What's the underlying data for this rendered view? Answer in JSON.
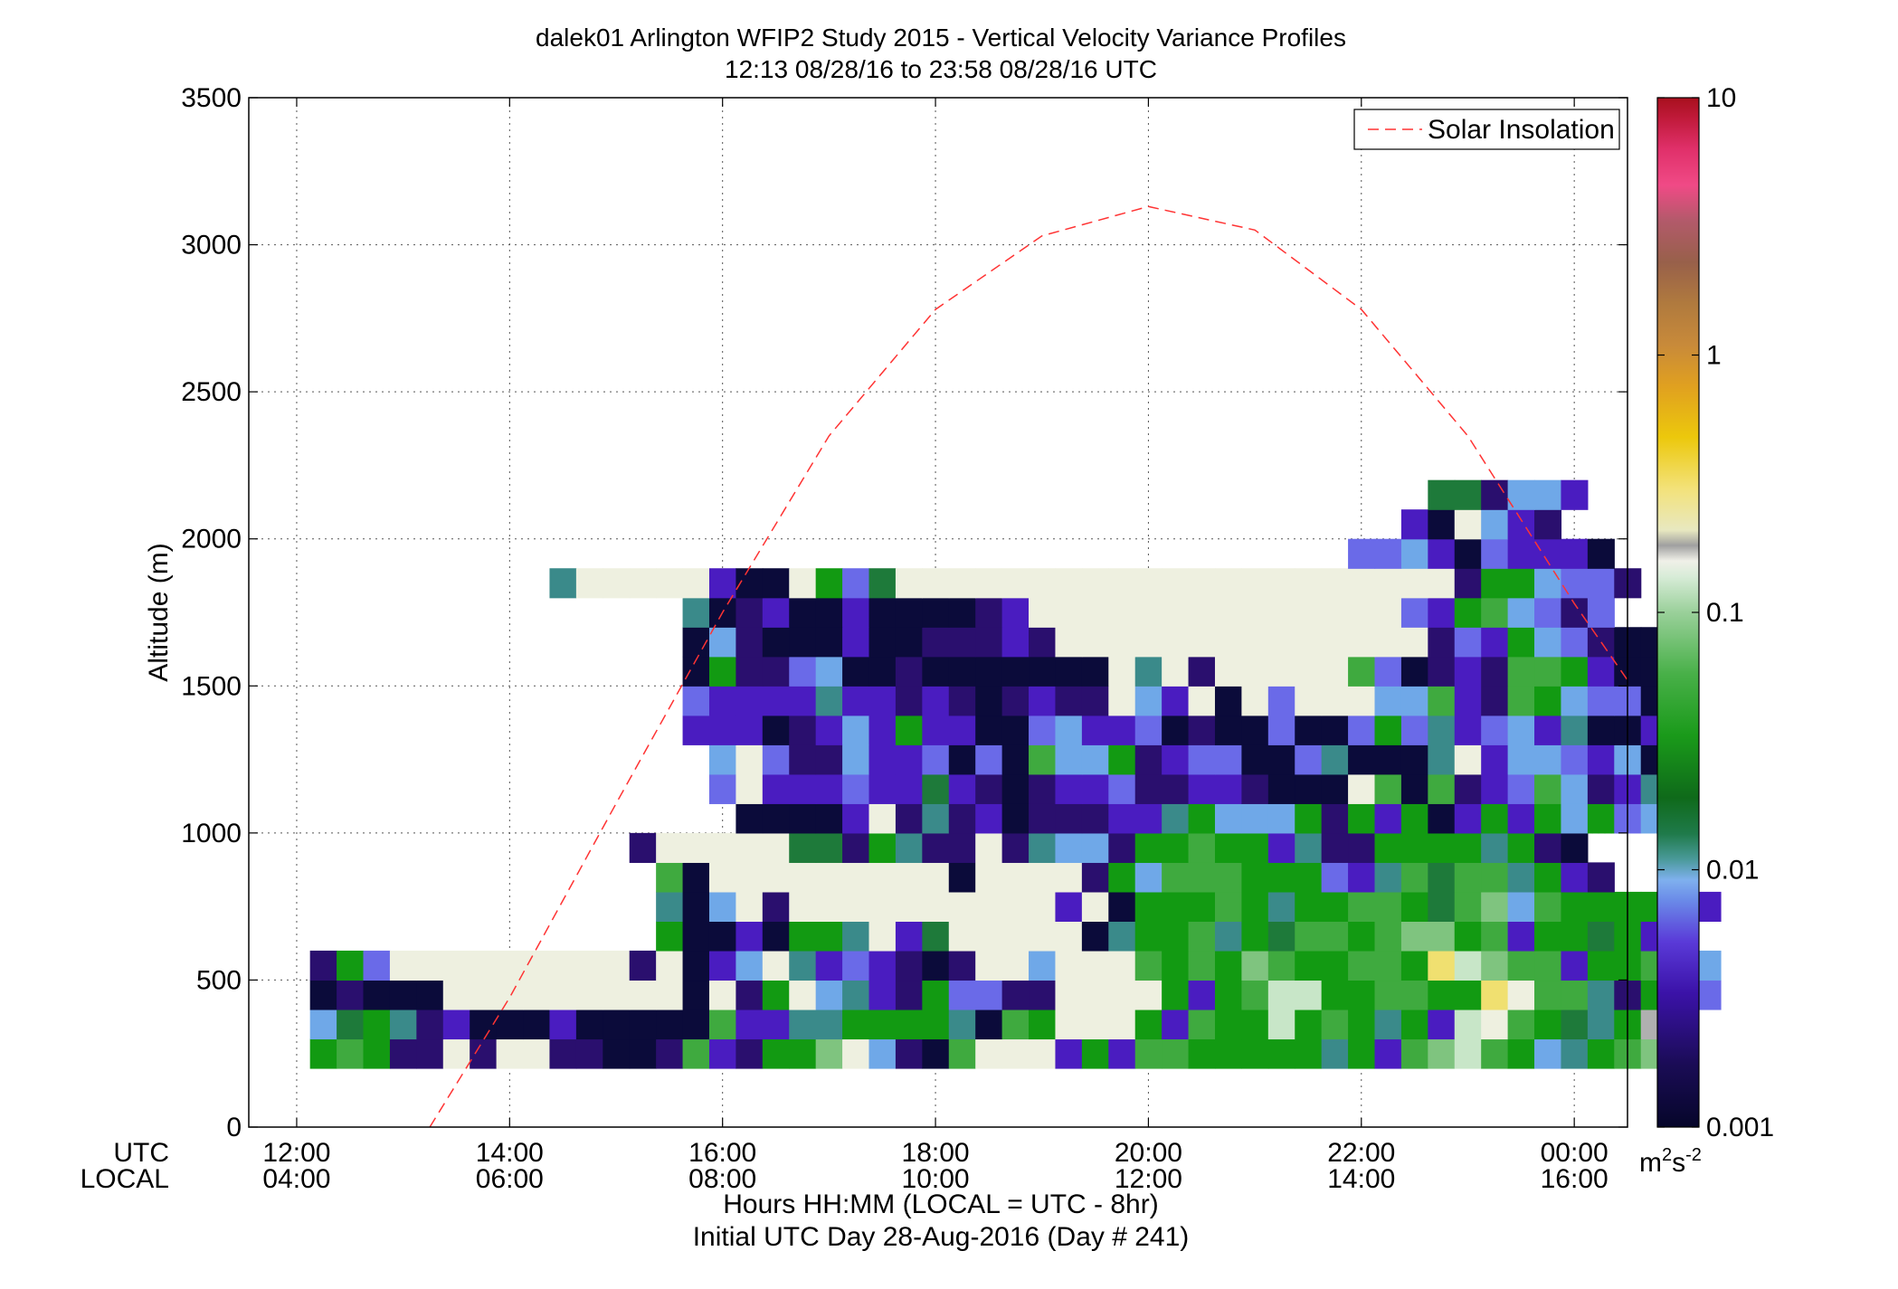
{
  "chart_data": {
    "type": "heatmap",
    "title": "dalek01 Arlington WFIP2 Study 2015 - Vertical Velocity Variance Profiles",
    "subtitle": "12:13 08/28/16 to 23:58 08/28/16  UTC",
    "ylabel": "Altitude (m)",
    "xlabel": "Hours HH:MM  (LOCAL = UTC - 8hr)",
    "xlabel2": "Initial UTC Day 28-Aug-2016 (Day # 241)",
    "xaxis_row_labels": [
      "UTC",
      "LOCAL"
    ],
    "xlim_hours": [
      11.55,
      24.5
    ],
    "ylim": [
      0,
      3500
    ],
    "ytick_values": [
      0,
      500,
      1000,
      1500,
      2000,
      2500,
      3000,
      3500
    ],
    "ytick_labels": [
      "0",
      "500",
      "1000",
      "1500",
      "2000",
      "2500",
      "3000",
      "3500"
    ],
    "xticks": [
      {
        "hour": 12,
        "utc": "12:00",
        "local": "04:00"
      },
      {
        "hour": 14,
        "utc": "14:00",
        "local": "06:00"
      },
      {
        "hour": 16,
        "utc": "16:00",
        "local": "08:00"
      },
      {
        "hour": 18,
        "utc": "18:00",
        "local": "10:00"
      },
      {
        "hour": 20,
        "utc": "20:00",
        "local": "12:00"
      },
      {
        "hour": 22,
        "utc": "22:00",
        "local": "14:00"
      },
      {
        "hour": 24,
        "utc": "00:00",
        "local": "16:00"
      }
    ],
    "grid": true,
    "legend": {
      "position": "top-right",
      "entries": [
        {
          "label": "Solar Insolation",
          "style": "dashed",
          "color": "#ff3333"
        }
      ]
    },
    "colorbar": {
      "scale": "log",
      "range": [
        0.001,
        10
      ],
      "tick_labels": [
        "10",
        "1",
        "0.1",
        "0.01",
        "0.001"
      ],
      "unit_label": "m",
      "unit_superscript": "2",
      "unit_label2": "s",
      "unit_superscript2": "-2"
    },
    "cell_size": {
      "hours": 0.25,
      "meters": 100
    },
    "cell_columns_start_hour": 12.25,
    "cells_note": "rows: altitude center (m); each string = one 15-min column starting at 12:15 UTC; char = palette key",
    "palette": {
      "n": "#0b0b3a",
      "d": "#2a0f6e",
      "v": "#4a1cc0",
      "b": "#6a6ae8",
      "s": "#6fa8e8",
      "t": "#3a8a8a",
      "k": "#1e7a3a",
      "g": "#129a12",
      "m": "#3faa3f",
      "l": "#7fc47f",
      "p": "#c8e6c8",
      "w": "#eef0e0",
      "y": "#f0e070",
      "Y": "#ecd020",
      "x": "#b0b0b0"
    },
    "cells": [
      {
        "alt": 250,
        "cols": "gmgdd.d..ddndmvdgglwsdnm...vgvmmgggggtgvmlpmgstgml"
      },
      {
        "alt": 350,
        "cols": "skgtdvnnnvnnnnnmvvttggggtnmg...gvmggpgmgtgvpwmgktgxl"
      },
      {
        "alt": 450,
        "cols": "ndnnn.........n.dg.stvdgbbdd....gvgmppggmmggywmmtdglb"
      },
      {
        "alt": 550,
        "cols": "dgb.........d.nvs.tvbvdnd..s...mgmglmggmmgyplmmvggmYs"
      },
      {
        "alt": 650,
        "cols": "...............gnnvnggt.vk.....ntggmtgkmmgmllgmvggkgv"
      },
      {
        "alt": 750,
        "cols": ".........................................................."
      }
    ],
    "cells_detail": [
      {
        "alt": 250,
        "start": 12.25,
        "cols": "gmgddwdwwddnndmvdgglwsdnmwwwvgvmmgggggtgvmlpmgstgml"
      },
      {
        "alt": 350,
        "start": 12.25,
        "cols": "skgtdvnnnvnnnnnmvvttggggtnmgwwwgvmggpgmgtgvpwmgktgxl"
      },
      {
        "alt": 450,
        "start": 12.25,
        "cols": "ndnnnwwwwwwwwwnwdgwstvdgbbddwwwwgvgmppggmmggywmmtdglb"
      },
      {
        "alt": 550,
        "start": 12.25,
        "cols": "dgbwwwwwwwwwdwnvswtvbvdndwwswwwmgmglmggmmgyplmmvggmYs"
      },
      {
        "alt": 650,
        "start": 15.5,
        "cols": "gnnvnggtwvkwwwwwntggmtgkmmgmllgmvggkgv"
      },
      {
        "alt": 750,
        "start": 15.5,
        "cols": "tnswdwwwwwwwwwwvwngggmgtggmmgkmlsmggggsv"
      },
      {
        "alt": 850,
        "start": 15.5,
        "cols": "mnwwwwwwwwwnwwwwdgsmmmgggbvtmkmmtgvd"
      },
      {
        "alt": 950,
        "start": 15.25,
        "cols": "dwwwwwkkdgtddwdtssdggmggvtddggggtgdn"
      },
      {
        "alt": 1050,
        "start": 16.25,
        "cols": "nnnnvwdtdvndddvvtgsssgdgvgnvgvgsgbs"
      },
      {
        "alt": 1150,
        "start": 16.0,
        "cols": "bwvvvbvvkvdndvvbddvvdnnnwmnmdvbmsdvtd"
      },
      {
        "alt": 1250,
        "start": 16.0,
        "cols": "swbddsvvbnbnmssgdvbbnnbtnnntwvssbvsnt"
      },
      {
        "alt": 1350,
        "start": 15.75,
        "cols": "vvvndvsvgvvnnbsvvbndnnbnnbgbtvbsvtnnv"
      },
      {
        "alt": 1450,
        "start": 15.75,
        "cols": "bvvvvtvvdvdndvddwsvwnwbwwwssmvdmgsbbnm"
      },
      {
        "alt": 1550,
        "start": 15.75,
        "cols": "ngddbsnndnnnnnnnwtwdwwwwwmbndvdmmgvnng"
      },
      {
        "alt": 1650,
        "start": 15.75,
        "cols": "nsdnnnvnndddvdwwwwwwwwwwwwwwdbvgsbdnn"
      },
      {
        "alt": 1750,
        "start": 15.75,
        "cols": "tndvnnvnnnndvwwwwwwwwwwwwwwbvgmsbdb"
      },
      {
        "alt": 1850,
        "start": 14.5,
        "cols": "twwwwwvnnwgbkwwwwwwwwwwwwwwwwwwwwwdggsbbd"
      },
      {
        "alt": 1950,
        "start": 22.0,
        "cols": "bbsvnbvvvn"
      },
      {
        "alt": 2050,
        "start": 22.5,
        "cols": "vnwsvd"
      },
      {
        "alt": 2150,
        "start": 22.75,
        "cols": "kkdssv"
      }
    ],
    "solar_insolation_curve": {
      "x_hours": [
        13.25,
        14.0,
        15.0,
        16.0,
        17.0,
        18.0,
        19.0,
        20.0,
        21.0,
        22.0,
        23.0,
        24.0,
        24.5
      ],
      "y_m": [
        0,
        440,
        1100,
        1750,
        2350,
        2780,
        3030,
        3130,
        3050,
        2780,
        2350,
        1780,
        1520
      ]
    }
  }
}
